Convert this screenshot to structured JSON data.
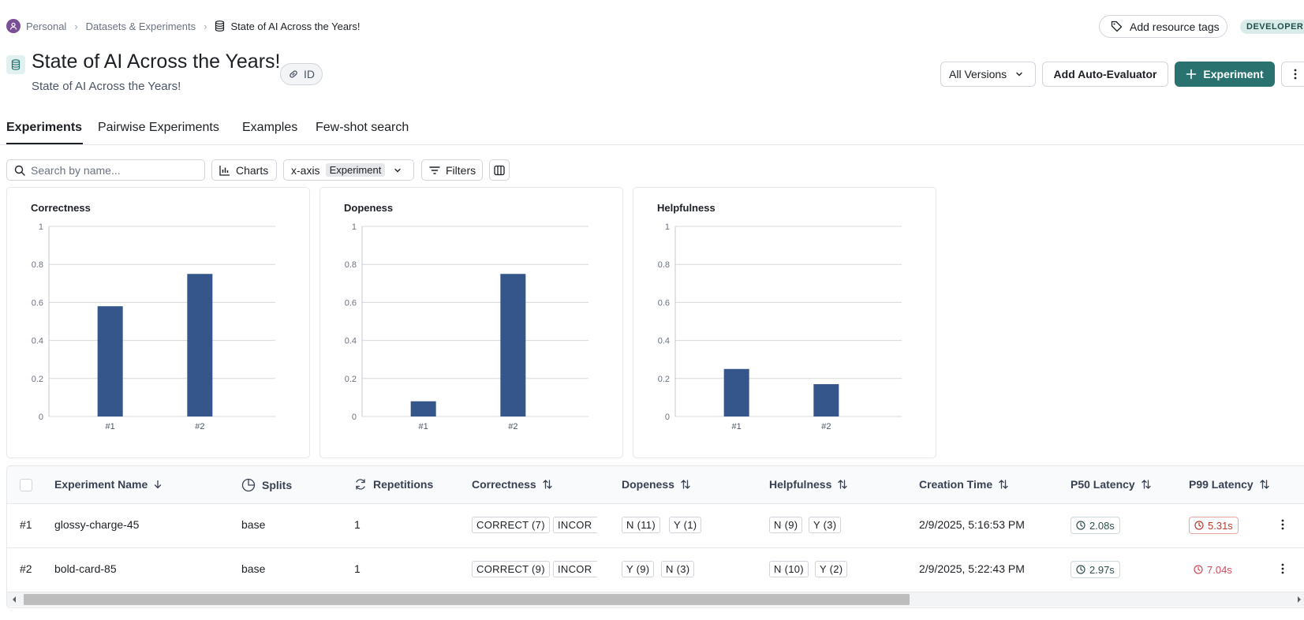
{
  "breadcrumb": {
    "workspace": "Personal",
    "section": "Datasets & Experiments",
    "current": "State of AI Across the Years!"
  },
  "header": {
    "title": "State of AI Across the Years!",
    "subtitle": "State of AI Across the Years!",
    "id_label": "ID",
    "tags_label": "Add resource tags",
    "badge": "DEVELOPER",
    "versions_label": "All Versions",
    "auto_eval_label": "Add Auto-Evaluator",
    "experiment_label": "Experiment"
  },
  "tabs": [
    {
      "label": "Experiments",
      "active": true
    },
    {
      "label": "Pairwise Experiments"
    },
    {
      "label": "Examples"
    },
    {
      "label": "Few-shot search"
    }
  ],
  "toolbar": {
    "search_placeholder": "Search by name...",
    "charts_label": "Charts",
    "xaxis_label": "x-axis",
    "xaxis_value": "Experiment",
    "filters_label": "Filters"
  },
  "colors": {
    "accent": "#2a7270",
    "bar": "#34568b",
    "bar_alt": "#33608f",
    "danger": "#c0392b"
  },
  "chart_data": [
    {
      "type": "bar",
      "title": "Correctness",
      "categories": [
        "#1",
        "#2"
      ],
      "values": [
        0.58,
        0.75
      ],
      "ylim": [
        0,
        1
      ],
      "yticks": [
        "0",
        "0.2",
        "0.4",
        "0.6",
        "0.8",
        "1"
      ],
      "grid": true
    },
    {
      "type": "bar",
      "title": "Dopeness",
      "categories": [
        "#1",
        "#2"
      ],
      "values": [
        0.08,
        0.75
      ],
      "ylim": [
        0,
        1
      ],
      "yticks": [
        "0",
        "0.2",
        "0.4",
        "0.6",
        "0.8",
        "1"
      ],
      "grid": true
    },
    {
      "type": "bar",
      "title": "Helpfulness",
      "categories": [
        "#1",
        "#2"
      ],
      "values": [
        0.25,
        0.17
      ],
      "ylim": [
        0,
        1
      ],
      "yticks": [
        "0",
        "0.2",
        "0.4",
        "0.6",
        "0.8",
        "1"
      ],
      "grid": true
    }
  ],
  "table": {
    "columns": [
      "Experiment Name",
      "Splits",
      "Repetitions",
      "Correctness",
      "Dopeness",
      "Helpfulness",
      "Creation Time",
      "P50 Latency",
      "P99 Latency"
    ],
    "rows": [
      {
        "idx": "#1",
        "name": "glossy-charge-45",
        "split": "base",
        "reps": "1",
        "correctness": [
          "CORRECT (7)",
          "INCOR"
        ],
        "dopeness": [
          "N (11)",
          "Y (1)"
        ],
        "helpfulness": [
          "N (9)",
          "Y (3)"
        ],
        "created": "2/9/2025, 5:16:53 PM",
        "p50": "2.08s",
        "p99": "5.31s"
      },
      {
        "idx": "#2",
        "name": "bold-card-85",
        "split": "base",
        "reps": "1",
        "correctness": [
          "CORRECT (9)",
          "INCOR"
        ],
        "dopeness": [
          "Y (9)",
          "N (3)"
        ],
        "helpfulness": [
          "N (10)",
          "Y (2)"
        ],
        "created": "2/9/2025, 5:22:43 PM",
        "p50": "2.97s",
        "p99": "7.04s"
      }
    ]
  }
}
